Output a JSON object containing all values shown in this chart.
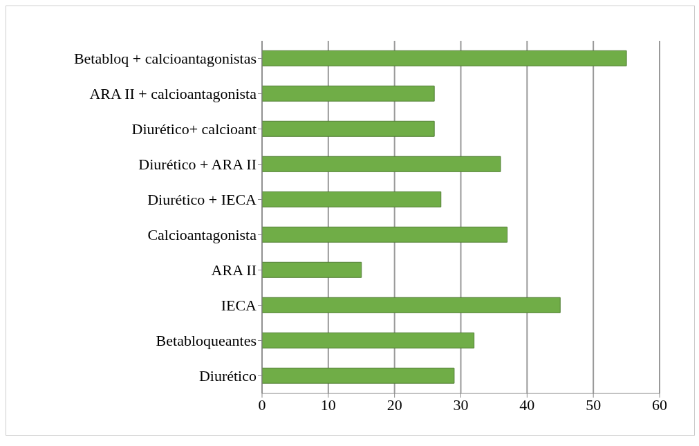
{
  "chart_data": {
    "type": "bar",
    "orientation": "horizontal",
    "categories": [
      "Betabloq + calcioantagonistas",
      "ARA II + calcioantagonista",
      "Diurético+ calcioant",
      "Diurético + ARA II",
      "Diurético + IECA",
      "Calcioantagonista",
      "ARA II",
      "IECA",
      "Betabloqueantes",
      "Diurético"
    ],
    "values": [
      55,
      26,
      26,
      36,
      27,
      37,
      15,
      45,
      32,
      29
    ],
    "color": "#70ad47",
    "xlim": [
      0,
      60
    ],
    "xticks": [
      0,
      10,
      20,
      30,
      40,
      50,
      60
    ],
    "grid": "x"
  }
}
